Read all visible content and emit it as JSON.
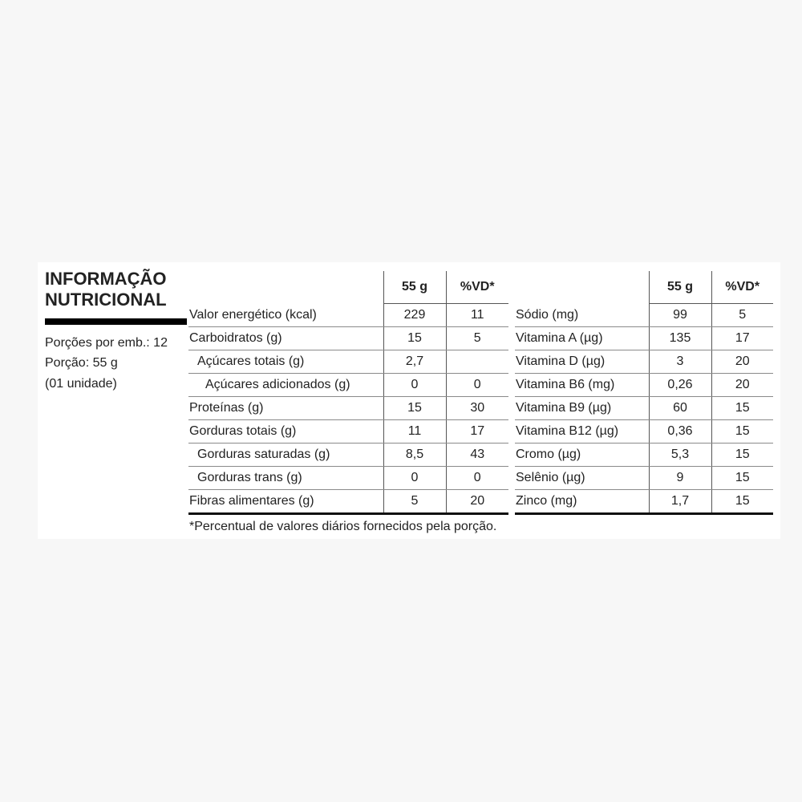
{
  "title_line1": "INFORMAÇÃO",
  "title_line2": "NUTRICIONAL",
  "servings": [
    "Porções por emb.: 12",
    "Porção: 55 g",
    "(01 unidade)"
  ],
  "col_amount": "55 g",
  "col_dv": "%VD*",
  "left_rows": [
    {
      "label": "Valor energético (kcal)",
      "amount": "229",
      "dv": "11",
      "indent": 0
    },
    {
      "label": "Carboidratos (g)",
      "amount": "15",
      "dv": "5",
      "indent": 0
    },
    {
      "label": "Açúcares totais (g)",
      "amount": "2,7",
      "dv": "",
      "indent": 1
    },
    {
      "label": "Açúcares adicionados (g)",
      "amount": "0",
      "dv": "0",
      "indent": 2
    },
    {
      "label": "Proteínas (g)",
      "amount": "15",
      "dv": "30",
      "indent": 0
    },
    {
      "label": "Gorduras totais (g)",
      "amount": "11",
      "dv": "17",
      "indent": 0
    },
    {
      "label": "Gorduras saturadas (g)",
      "amount": "8,5",
      "dv": "43",
      "indent": 1
    },
    {
      "label": "Gorduras trans (g)",
      "amount": "0",
      "dv": "0",
      "indent": 1
    },
    {
      "label": "Fibras alimentares (g)",
      "amount": "5",
      "dv": "20",
      "indent": 0
    }
  ],
  "right_rows": [
    {
      "label": "Sódio (mg)",
      "amount": "99",
      "dv": "5",
      "indent": 0
    },
    {
      "label": "Vitamina A (µg)",
      "amount": "135",
      "dv": "17",
      "indent": 0
    },
    {
      "label": "Vitamina D (µg)",
      "amount": "3",
      "dv": "20",
      "indent": 0
    },
    {
      "label": "Vitamina B6 (mg)",
      "amount": "0,26",
      "dv": "20",
      "indent": 0
    },
    {
      "label": "Vitamina B9 (µg)",
      "amount": "60",
      "dv": "15",
      "indent": 0
    },
    {
      "label": "Vitamina B12 (µg)",
      "amount": "0,36",
      "dv": "15",
      "indent": 0
    },
    {
      "label": "Cromo (µg)",
      "amount": "5,3",
      "dv": "15",
      "indent": 0
    },
    {
      "label": "Selênio (µg)",
      "amount": "9",
      "dv": "15",
      "indent": 0
    },
    {
      "label": "Zinco (mg)",
      "amount": "1,7",
      "dv": "15",
      "indent": 0
    }
  ],
  "footnote": "*Percentual de valores diários fornecidos pela porção."
}
